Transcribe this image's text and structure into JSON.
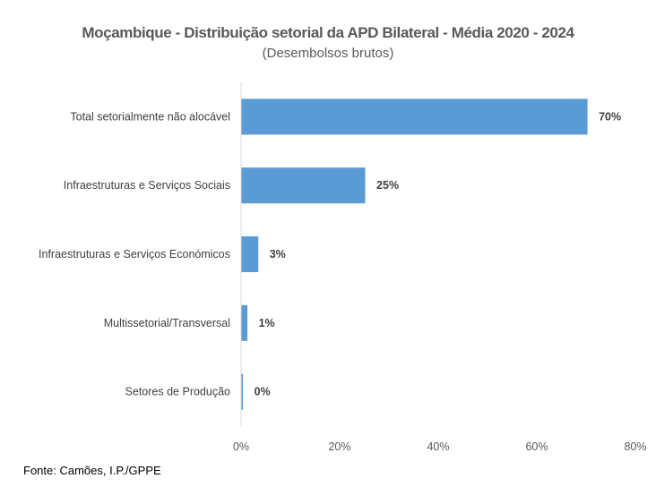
{
  "chart_data": {
    "type": "bar",
    "orientation": "horizontal",
    "title": "Moçambique - Distribuição setorial da APD Bilateral - Média 2020 - 2024",
    "subtitle": "(Desembolsos brutos)",
    "categories": [
      "Total setorialmente não alocável",
      "Infraestruturas e Serviços Sociais",
      "Infraestruturas e Serviços Económicos",
      "Multissetorial/Transversal",
      "Setores de Produção"
    ],
    "values": [
      70.2,
      25.1,
      3.4,
      1.2,
      0.3
    ],
    "data_labels": [
      "70%",
      "25%",
      "3%",
      "1%",
      "0%"
    ],
    "xlim": [
      0,
      80
    ],
    "xticks": [
      "0%",
      "20%",
      "40%",
      "60%",
      "80%"
    ],
    "xtick_values": [
      0,
      20,
      40,
      60,
      80
    ],
    "xlabel": "",
    "ylabel": "",
    "grid": false,
    "bar_color": "#5B9BD5"
  },
  "source": "Fonte: Camões, I.P./GPPE"
}
